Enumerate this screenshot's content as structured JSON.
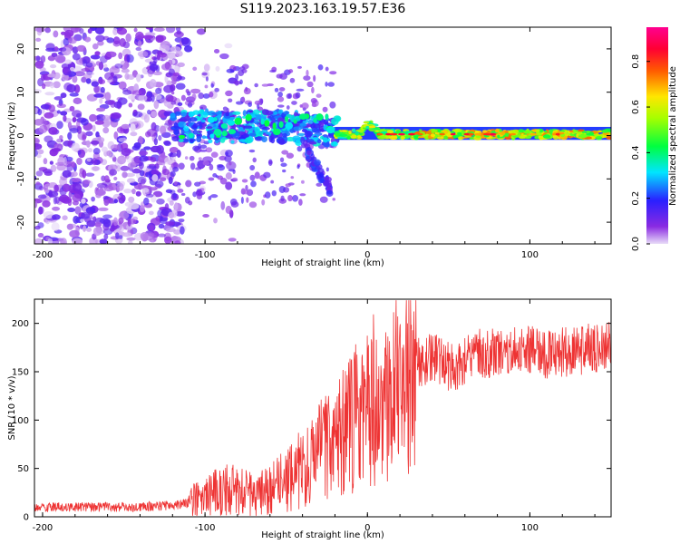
{
  "figure_title": "S119.2023.163.19.57.E36",
  "chart_data": [
    {
      "type": "heatmap",
      "xlabel": "Height of straight line (km)",
      "ylabel": "Frequency (Hz)",
      "xlim": [
        -205,
        150
      ],
      "ylim": [
        -25,
        25
      ],
      "xticks": [
        -200,
        -100,
        0,
        100
      ],
      "xtick_labels": [
        "-200",
        "-100",
        "0",
        "100"
      ],
      "yticks": [
        -20,
        -10,
        0,
        10,
        20
      ],
      "ytick_labels": [
        "-20",
        "-10",
        "0",
        "10",
        "20"
      ],
      "colorbar": {
        "label": "Normalized spectral amplitude",
        "range": [
          0,
          0.95
        ],
        "ticks": [
          0,
          0.2,
          0.4,
          0.6,
          0.8
        ],
        "tick_labels": [
          "0.0",
          "0.2",
          "0.4",
          "0.6",
          "0.8"
        ],
        "colormap": "rainbow (violet → blue → cyan → green → yellow → red → magenta)"
      },
      "description_regions": [
        {
          "x_range": [
            -205,
            -120
          ],
          "freq_range": [
            -25,
            25
          ],
          "amplitude": "low, scattered noise"
        },
        {
          "x_range": [
            -120,
            -20
          ],
          "freq_range": [
            -15,
            15
          ],
          "amplitude": "moderate, signal emerging near 0–5 Hz"
        },
        {
          "x_range": [
            -20,
            150
          ],
          "freq_range": [
            -1,
            2
          ],
          "amplitude": "high, narrow band centered near 0 Hz"
        }
      ],
      "grid": false
    },
    {
      "type": "line",
      "xlabel": "Height of straight line (km)",
      "ylabel": "SNR (10 * v/v)",
      "xlim": [
        -205,
        150
      ],
      "ylim": [
        0,
        225
      ],
      "xticks": [
        -200,
        -100,
        0,
        100
      ],
      "xtick_labels": [
        "-200",
        "-100",
        "0",
        "100"
      ],
      "yticks": [
        0,
        50,
        100,
        150,
        200
      ],
      "ytick_labels": [
        "0",
        "50",
        "100",
        "150",
        "200"
      ],
      "line_color": "#ee3333",
      "grid": false,
      "series": [
        {
          "x": [
            -205,
            -190,
            -175,
            -160,
            -145,
            -130,
            -120,
            -110,
            -100,
            -90,
            -80,
            -70,
            -60,
            -50,
            -40,
            -30,
            -20,
            -10,
            0,
            10,
            20,
            30,
            40,
            50,
            60,
            70,
            80,
            90,
            100,
            110,
            120,
            130,
            140,
            150
          ],
          "values": [
            10,
            10,
            10,
            10,
            10,
            11,
            12,
            14,
            20,
            30,
            26,
            22,
            28,
            38,
            50,
            65,
            80,
            95,
            115,
            130,
            145,
            158,
            165,
            155,
            160,
            170,
            168,
            175,
            172,
            168,
            170,
            172,
            175,
            178
          ]
        }
      ]
    }
  ]
}
